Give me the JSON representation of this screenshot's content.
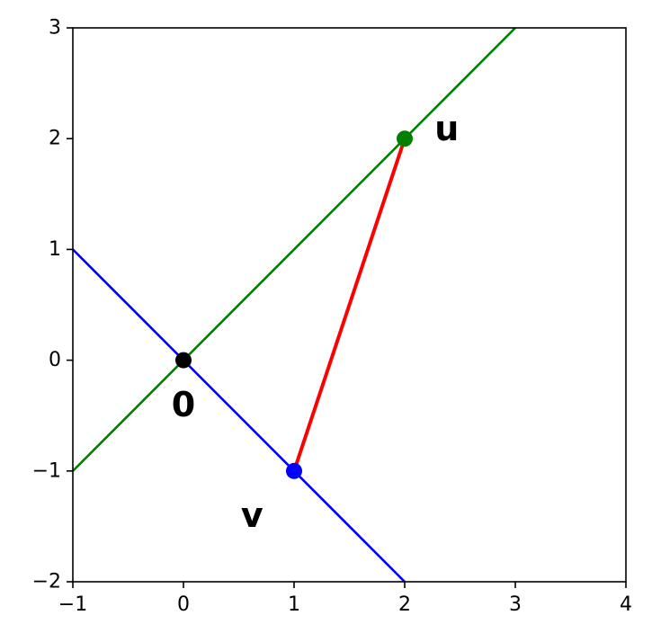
{
  "chart_data": {
    "type": "line",
    "title": "",
    "xlabel": "",
    "ylabel": "",
    "xlim": [
      -1,
      4
    ],
    "ylim": [
      -2,
      3
    ],
    "grid": false,
    "x_ticks": [
      -1,
      0,
      1,
      2,
      3,
      4
    ],
    "y_ticks": [
      -2,
      -1,
      0,
      1,
      2,
      3
    ],
    "x_tick_labels": [
      "−1",
      "0",
      "1",
      "2",
      "3",
      "4"
    ],
    "y_tick_labels": [
      "−2",
      "−1",
      "0",
      "1",
      "2",
      "3"
    ],
    "lines": [
      {
        "color": "#008000",
        "points": [
          [
            -1,
            -1
          ],
          [
            3,
            3
          ]
        ]
      },
      {
        "color": "#0000ff",
        "points": [
          [
            -1,
            1
          ],
          [
            2,
            -2
          ]
        ]
      },
      {
        "color": "#ff0000",
        "points": [
          [
            1,
            -1
          ],
          [
            2,
            2
          ]
        ]
      }
    ],
    "points": [
      {
        "x": 0,
        "y": 0,
        "color": "#000000"
      },
      {
        "x": 2,
        "y": 2,
        "color": "#008000"
      },
      {
        "x": 1,
        "y": -1,
        "color": "#0000ff"
      }
    ],
    "annotations": [
      {
        "text": "0",
        "x": 0,
        "y": -0.4
      },
      {
        "text": "u",
        "x": 2.38,
        "y": 2.09
      },
      {
        "text": "v",
        "x": 0.62,
        "y": -1.4
      }
    ]
  }
}
